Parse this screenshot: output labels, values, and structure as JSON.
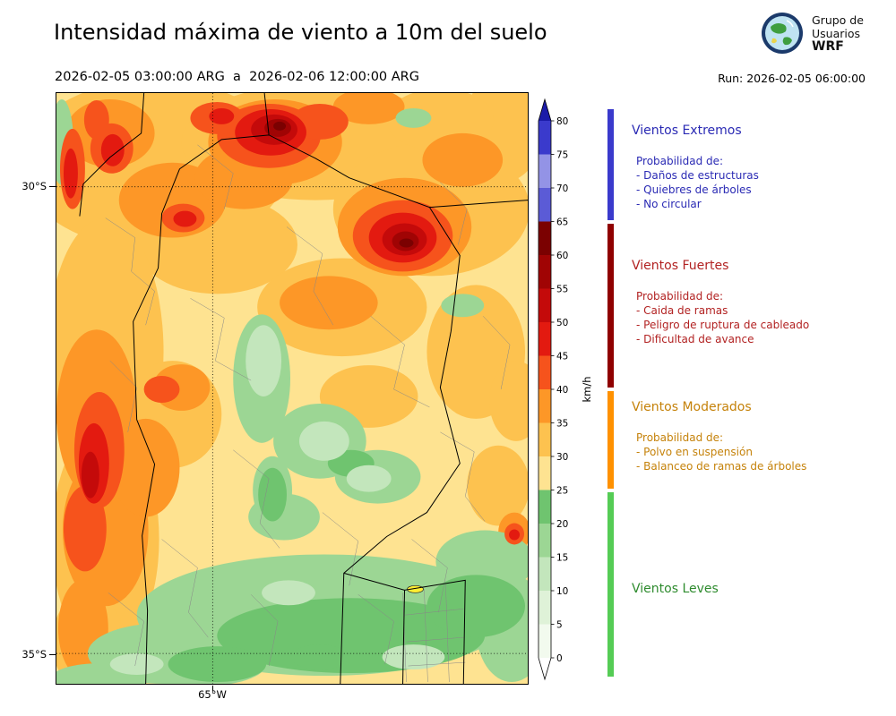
{
  "header": {
    "title": "Intensidad máxima de viento a 10m del suelo",
    "date_range": "2026-02-05 03:00:00 ARG  a  2026-02-06 12:00:00 ARG",
    "run_label": "Run: 2026-02-05 06:00:00",
    "logo_icon": "globe-icon",
    "logo_lines": [
      "Grupo de",
      "Usuarios",
      "WRF"
    ]
  },
  "map": {
    "lat_labels": [
      "30°S",
      "35°S"
    ],
    "lon_label": "65°W"
  },
  "colorbar": {
    "unit": "km/h",
    "min": 0,
    "max": 80,
    "ticks": [
      0,
      5,
      10,
      15,
      20,
      25,
      30,
      35,
      40,
      45,
      50,
      55,
      60,
      65,
      70,
      75,
      80
    ],
    "segments": [
      {
        "from": 0,
        "to": 5,
        "color": "#f2faee"
      },
      {
        "from": 5,
        "to": 10,
        "color": "#dff2d8"
      },
      {
        "from": 10,
        "to": 15,
        "color": "#c3e6bc"
      },
      {
        "from": 15,
        "to": 20,
        "color": "#9cd694"
      },
      {
        "from": 20,
        "to": 25,
        "color": "#6fc46f"
      },
      {
        "from": 25,
        "to": 30,
        "color": "#fee391"
      },
      {
        "from": 30,
        "to": 35,
        "color": "#fdc24f"
      },
      {
        "from": 35,
        "to": 40,
        "color": "#fd9727"
      },
      {
        "from": 40,
        "to": 45,
        "color": "#f6531c"
      },
      {
        "from": 45,
        "to": 50,
        "color": "#e31a10"
      },
      {
        "from": 50,
        "to": 55,
        "color": "#c40a0a"
      },
      {
        "from": 55,
        "to": 60,
        "color": "#a00404"
      },
      {
        "from": 60,
        "to": 65,
        "color": "#7b0101"
      },
      {
        "from": 65,
        "to": 70,
        "color": "#5b5bd6"
      },
      {
        "from": 70,
        "to": 75,
        "color": "#9393e6"
      },
      {
        "from": 75,
        "to": 80,
        "color": "#3a3acc"
      }
    ],
    "over_color": "#1b1ba8",
    "under_color": "#ffffff"
  },
  "legend": {
    "categories": [
      {
        "name": "Vientos Extremos",
        "text_color": "#2a2ab4",
        "bar_color": "#3a3acc",
        "range_kmh": [
          65,
          82
        ],
        "prob_title": "Probabilidad de:",
        "items": [
          "- Daños de estructuras",
          "- Quiebres de árboles",
          "- No circular"
        ]
      },
      {
        "name": "Vientos Fuertes",
        "text_color": "#b22222",
        "bar_color": "#8f0000",
        "range_kmh": [
          40,
          65
        ],
        "prob_title": "Probabilidad de:",
        "items": [
          "- Caida de ramas",
          "- Peligro de ruptura de cableado",
          "- Dificultad de avance"
        ]
      },
      {
        "name": "Vientos Moderados",
        "text_color": "#c5820a",
        "bar_color": "#ff9100",
        "range_kmh": [
          25,
          40
        ],
        "prob_title": "Probabilidad de:",
        "items": [
          "- Polvo en suspensión",
          "- Balanceo de ramas de árboles"
        ]
      },
      {
        "name": "Vientos Leves",
        "text_color": "#2e8b2e",
        "bar_color": "#55cc55",
        "range_kmh": [
          -3,
          25
        ],
        "prob_title": "",
        "items": []
      }
    ]
  }
}
